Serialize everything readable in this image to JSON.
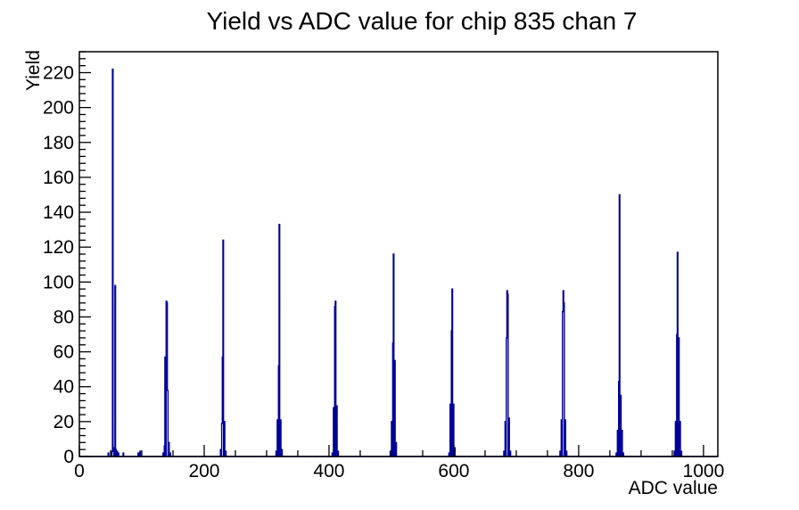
{
  "chart_data": {
    "type": "bar",
    "title": "Yield vs ADC value for chip 835 chan 7",
    "xlabel": "ADC value",
    "ylabel": "Yield",
    "xlim": [
      0,
      1023
    ],
    "ylim": [
      0,
      232
    ],
    "x_major_ticks": [
      0,
      200,
      400,
      600,
      800,
      1000
    ],
    "x_minor_step": 50,
    "y_major_ticks": [
      0,
      20,
      40,
      60,
      80,
      100,
      120,
      140,
      160,
      180,
      200,
      220
    ],
    "y_minor_step": 4,
    "grid": false,
    "legend": false,
    "line_color": "#000099",
    "axis_color": "#000000",
    "background_color": "#ffffff",
    "peaks": [
      {
        "adc": 53,
        "yield": 222
      },
      {
        "adc": 139,
        "yield": 89
      },
      {
        "adc": 230,
        "yield": 124
      },
      {
        "adc": 320,
        "yield": 133
      },
      {
        "adc": 410,
        "yield": 89
      },
      {
        "adc": 503,
        "yield": 116
      },
      {
        "adc": 597,
        "yield": 96
      },
      {
        "adc": 685,
        "yield": 95
      },
      {
        "adc": 775,
        "yield": 95
      },
      {
        "adc": 865,
        "yield": 150
      },
      {
        "adc": 958,
        "yield": 117
      }
    ],
    "bins": [
      [
        46,
        2
      ],
      [
        52,
        3
      ],
      [
        53,
        222
      ],
      [
        54,
        5
      ],
      [
        57,
        98
      ],
      [
        58,
        4
      ],
      [
        60,
        3
      ],
      [
        62,
        2
      ],
      [
        70,
        2
      ],
      [
        94,
        2
      ],
      [
        97,
        3
      ],
      [
        134,
        2
      ],
      [
        136,
        6
      ],
      [
        137,
        57
      ],
      [
        139,
        89
      ],
      [
        140,
        88
      ],
      [
        141,
        38
      ],
      [
        143,
        8
      ],
      [
        145,
        2
      ],
      [
        226,
        4
      ],
      [
        228,
        19
      ],
      [
        229,
        57
      ],
      [
        230,
        124
      ],
      [
        232,
        20
      ],
      [
        234,
        3
      ],
      [
        315,
        3
      ],
      [
        317,
        21
      ],
      [
        319,
        52
      ],
      [
        320,
        133
      ],
      [
        322,
        21
      ],
      [
        324,
        4
      ],
      [
        405,
        2
      ],
      [
        407,
        28
      ],
      [
        409,
        86
      ],
      [
        410,
        89
      ],
      [
        412,
        29
      ],
      [
        414,
        3
      ],
      [
        498,
        3
      ],
      [
        500,
        20
      ],
      [
        502,
        65
      ],
      [
        503,
        116
      ],
      [
        505,
        55
      ],
      [
        507,
        8
      ],
      [
        592,
        2
      ],
      [
        594,
        30
      ],
      [
        596,
        72
      ],
      [
        597,
        96
      ],
      [
        599,
        30
      ],
      [
        601,
        5
      ],
      [
        680,
        3
      ],
      [
        682,
        20
      ],
      [
        684,
        68
      ],
      [
        685,
        95
      ],
      [
        686,
        93
      ],
      [
        688,
        22
      ],
      [
        690,
        3
      ],
      [
        770,
        3
      ],
      [
        772,
        21
      ],
      [
        774,
        83
      ],
      [
        775,
        95
      ],
      [
        776,
        88
      ],
      [
        778,
        21
      ],
      [
        780,
        3
      ],
      [
        860,
        2
      ],
      [
        862,
        15
      ],
      [
        864,
        43
      ],
      [
        865,
        150
      ],
      [
        867,
        35
      ],
      [
        869,
        15
      ],
      [
        871,
        2
      ],
      [
        953,
        3
      ],
      [
        955,
        20
      ],
      [
        957,
        70
      ],
      [
        958,
        117
      ],
      [
        960,
        68
      ],
      [
        962,
        20
      ],
      [
        964,
        3
      ]
    ]
  }
}
